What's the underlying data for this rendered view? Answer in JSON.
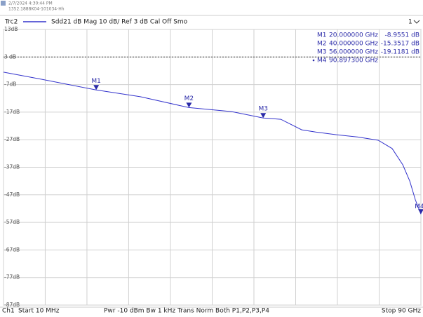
{
  "header": {
    "timestamp": "2/7/2024 4:30:44 PM",
    "device": "1352.1888K04-101034-Hh",
    "trace": "Trc2",
    "settings": "Sdd21  dB Mag  10 dB/ Ref 3 dB  Cal Off Smo",
    "channel_num": "1"
  },
  "footer": {
    "channel": "Ch1",
    "start": "Start  10 MHz",
    "settings": "Pwr  -10 dBm  Bw  1 kHz  Trans Norm Both P1,P2,P3,P4",
    "stop": "Stop  90 GHz"
  },
  "chart_data": {
    "type": "line",
    "x": [
      0.01,
      8.3,
      20,
      29.5,
      40,
      49.2,
      56,
      59.8,
      64.3,
      67.3,
      71.8,
      76.3,
      80.8,
      83.8,
      86.1,
      87.6,
      88.8,
      90
    ],
    "series": [
      {
        "name": "Trc2",
        "color": "#3333cc",
        "values": [
          -2.5,
          -5.1,
          -8.96,
          -11.4,
          -15.35,
          -16.8,
          -19.12,
          -19.6,
          -23.4,
          -24.2,
          -25.2,
          -26,
          -27.2,
          -30.2,
          -36.1,
          -42,
          -48.8,
          -54
        ]
      }
    ],
    "xlim": [
      0.01,
      90
    ],
    "ylim": [
      -87,
      13
    ],
    "yticks": [
      {
        "value": 13,
        "label": "13dB"
      },
      {
        "value": 3,
        "label": "3 dB"
      },
      {
        "value": -7,
        "label": "-7dB"
      },
      {
        "value": -17,
        "label": "-17dB"
      },
      {
        "value": -27,
        "label": "-27dB"
      },
      {
        "value": -37,
        "label": "-37dB"
      },
      {
        "value": -47,
        "label": "-47dB"
      },
      {
        "value": -57,
        "label": "-57dB"
      },
      {
        "value": -67,
        "label": "-67dB"
      },
      {
        "value": -77,
        "label": "-77dB"
      },
      {
        "value": -87,
        "label": "-87dB"
      }
    ],
    "xticks": [
      0.01,
      9,
      18,
      27,
      36,
      45,
      54,
      63,
      72,
      81,
      90
    ],
    "ref": 3,
    "grid": true,
    "markers": [
      {
        "name": "M1",
        "x": 20,
        "y": -8.9551,
        "x_label": "20.000000  GHz",
        "y_label": "-8.9551  dB"
      },
      {
        "name": "M2",
        "x": 40,
        "y": -15.3517,
        "x_label": "40.000000  GHz",
        "y_label": "-15.3517  dB"
      },
      {
        "name": "M3",
        "x": 56,
        "y": -19.1181,
        "x_label": "56.000000  GHz",
        "y_label": "-19.1181  dB"
      },
      {
        "name": "M4",
        "x": 90.8973,
        "x_label": "90.897300  GHz"
      }
    ]
  }
}
